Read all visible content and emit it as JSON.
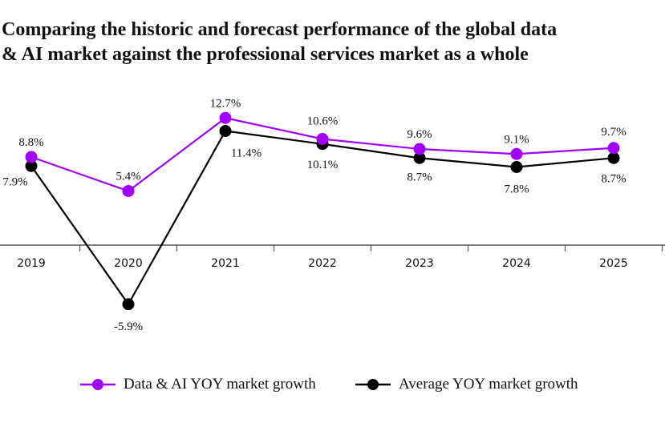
{
  "title_lines": [
    "Comparing the historic and forecast performance of the global data",
    "& AI market against the professional services market as a whole"
  ],
  "chart_data": {
    "type": "line",
    "title": "Comparing the historic and forecast performance of the global data & AI market against the professional services market as a whole",
    "categories": [
      "2019",
      "2020",
      "2021",
      "2022",
      "2023",
      "2024",
      "2025"
    ],
    "series": [
      {
        "name": "Data & AI YOY market growth",
        "color": "#A100FF",
        "values": [
          8.8,
          5.4,
          12.7,
          10.6,
          9.6,
          9.1,
          9.7
        ],
        "labels": [
          "8.8%",
          "5.4%",
          "12.7%",
          "10.6%",
          "9.6%",
          "9.1%",
          "9.7%"
        ]
      },
      {
        "name": "Average YOY market growth",
        "color": "#000000",
        "values": [
          7.9,
          -5.9,
          11.4,
          10.1,
          8.7,
          7.8,
          8.7
        ],
        "labels": [
          "7.9%",
          "-5.9%",
          "11.4%",
          "10.1%",
          "8.7%",
          "7.8%",
          "8.7%"
        ]
      }
    ],
    "xlabel": "",
    "ylabel": "",
    "ylim": [
      -7,
      14
    ],
    "grid": false,
    "legend_position": "bottom"
  }
}
